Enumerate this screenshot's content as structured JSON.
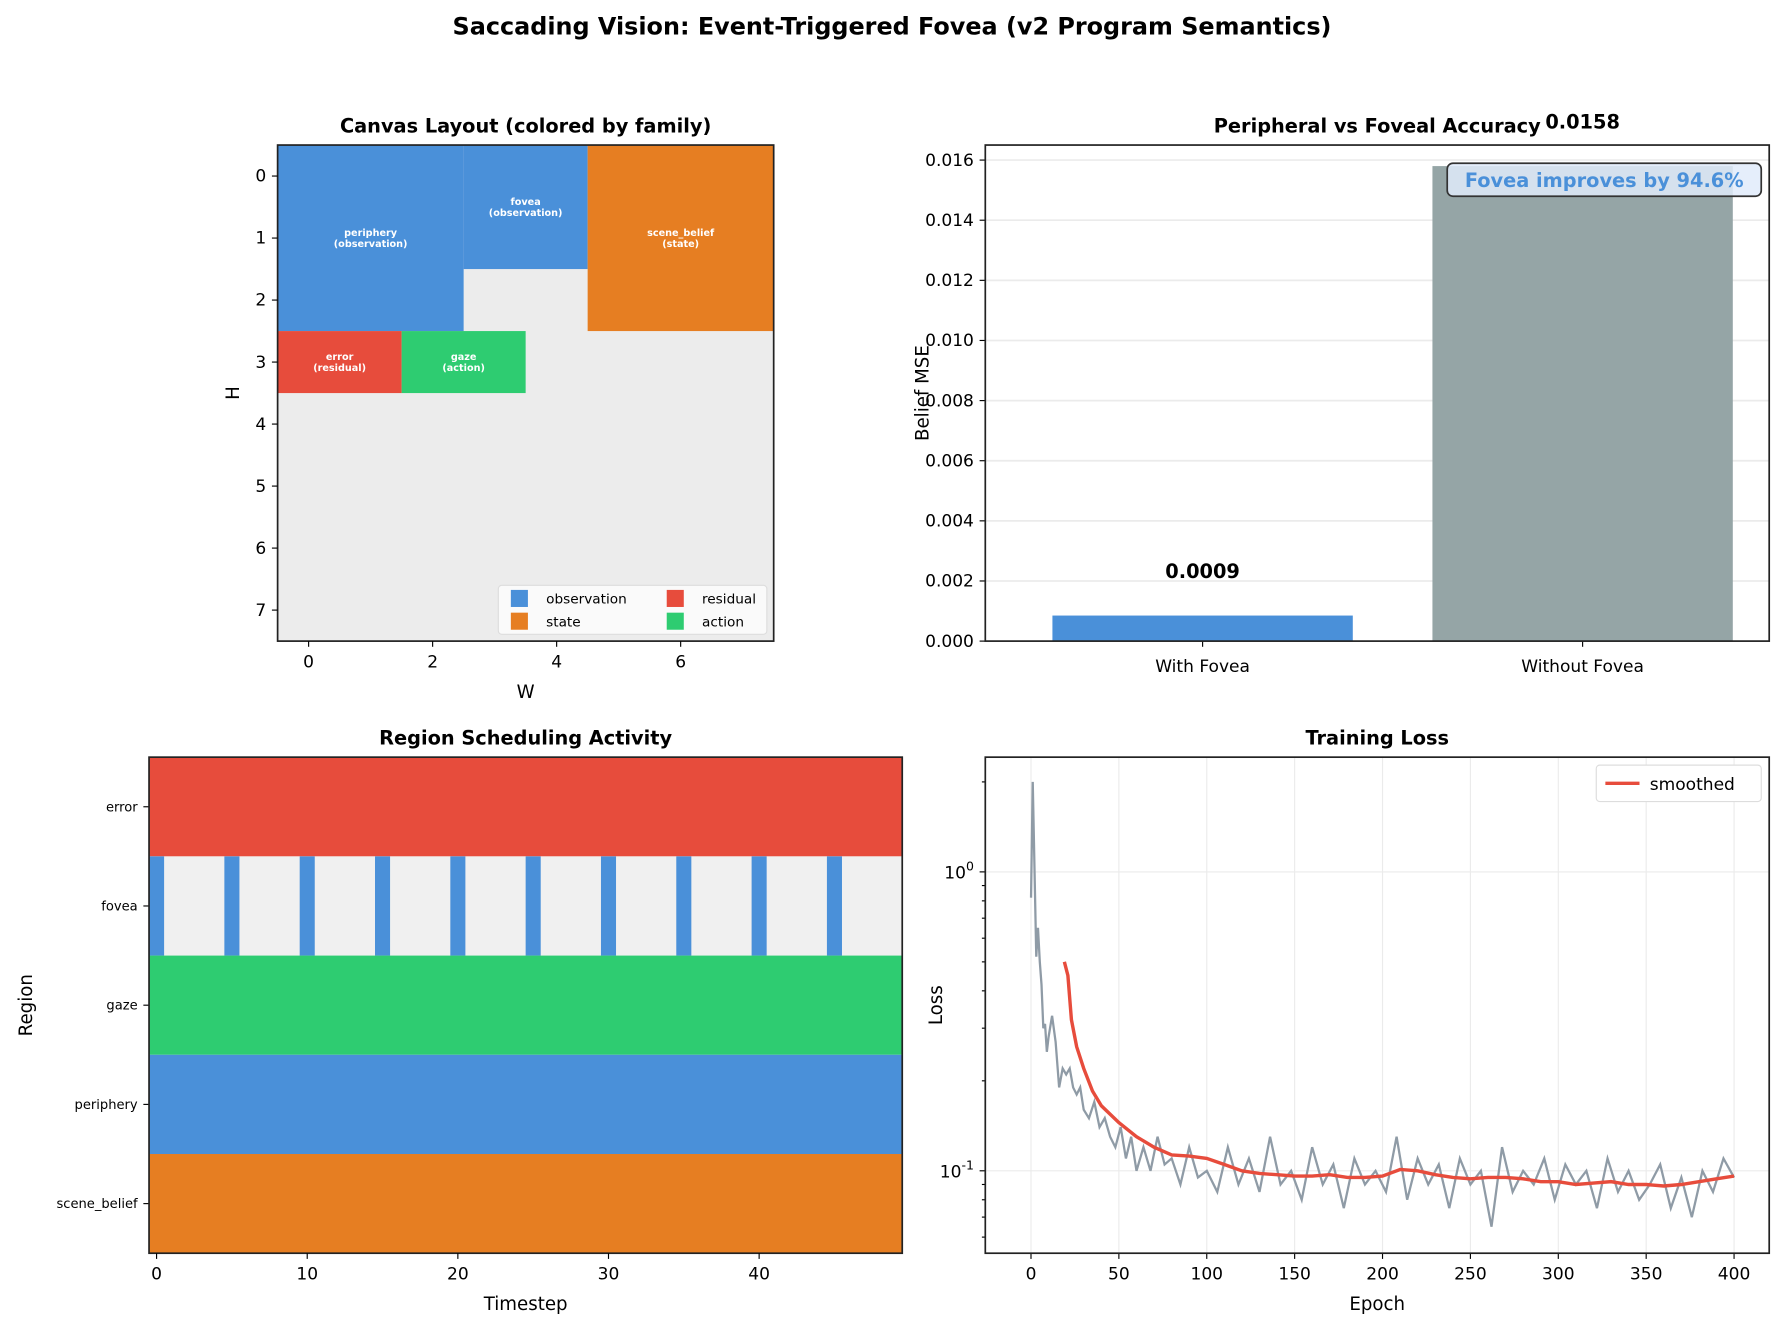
{
  "title": "Saccading Vision: Event-Triggered Fovea (v2 Program Semantics)",
  "colors": {
    "observation": "#4a90d9",
    "state": "#e67e22",
    "residual": "#e74c3c",
    "action": "#2ecc71",
    "empty": "#ececec",
    "inactive": "#f0f0f0",
    "without": "#95a5a6",
    "raw_loss": "#8f9ba6",
    "smoothed": "#e74c3c"
  },
  "chart_data": [
    {
      "type": "heatmap",
      "title": "Canvas Layout (colored by family)",
      "xlabel": "W",
      "ylabel": "H",
      "xlim": [
        -0.5,
        7.5
      ],
      "ylim": [
        7.5,
        -0.5
      ],
      "xticks": [
        "0",
        "2",
        "4",
        "6"
      ],
      "yticks": [
        "0",
        "1",
        "2",
        "3",
        "4",
        "5",
        "6",
        "7"
      ],
      "regions": [
        {
          "name": "periphery",
          "family": "observation",
          "label": "periphery\n(observation)",
          "rows": [
            0,
            2
          ],
          "cols": [
            0,
            2
          ]
        },
        {
          "name": "fovea",
          "family": "observation",
          "label": "fovea\n(observation)",
          "rows": [
            0,
            1
          ],
          "cols": [
            3,
            4
          ]
        },
        {
          "name": "scene_belief",
          "family": "state",
          "label": "scene_belief\n(state)",
          "rows": [
            0,
            2
          ],
          "cols": [
            5,
            7
          ]
        },
        {
          "name": "error",
          "family": "residual",
          "label": "error\n(residual)",
          "rows": [
            3,
            3
          ],
          "cols": [
            0,
            1
          ]
        },
        {
          "name": "gaze",
          "family": "action",
          "label": "gaze\n(action)",
          "rows": [
            3,
            3
          ],
          "cols": [
            2,
            3
          ]
        }
      ],
      "legend": {
        "position": "lower-right",
        "entries": [
          "observation",
          "state",
          "residual",
          "action"
        ]
      }
    },
    {
      "type": "bar",
      "title": "Peripheral vs Foveal Accuracy",
      "ylabel": "Belief MSE",
      "categories": [
        "With Fovea",
        "Without Fovea"
      ],
      "values": [
        0.00085,
        0.0158
      ],
      "data_labels": [
        "0.0009",
        "0.0158"
      ],
      "ylim": [
        0,
        0.0165
      ],
      "yticks": [
        "0.000",
        "0.002",
        "0.004",
        "0.006",
        "0.008",
        "0.010",
        "0.012",
        "0.014",
        "0.016"
      ],
      "grid": "y",
      "annotation": "Fovea improves by 94.6%"
    },
    {
      "type": "heatmap",
      "title": "Region Scheduling Activity",
      "xlabel": "Timestep",
      "ylabel": "Region",
      "xlim": [
        -0.5,
        49.5
      ],
      "xticks": [
        "0",
        "10",
        "20",
        "30",
        "40"
      ],
      "rows": [
        {
          "name": "error",
          "family": "residual",
          "active": "all"
        },
        {
          "name": "fovea",
          "family": "observation",
          "active": [
            0,
            5,
            10,
            15,
            20,
            25,
            30,
            35,
            40,
            45
          ]
        },
        {
          "name": "gaze",
          "family": "action",
          "active": "all"
        },
        {
          "name": "periphery",
          "family": "observation",
          "active": "all"
        },
        {
          "name": "scene_belief",
          "family": "state",
          "active": "all"
        }
      ]
    },
    {
      "type": "line",
      "title": "Training Loss",
      "xlabel": "Epoch",
      "ylabel": "Loss",
      "yscale": "log",
      "xlim": [
        -26,
        420
      ],
      "ylim": [
        0.053,
        2.42
      ],
      "xticks": [
        "0",
        "50",
        "100",
        "150",
        "200",
        "250",
        "300",
        "350",
        "400"
      ],
      "yticks": [
        "10^0",
        "10^-1"
      ],
      "grid": true,
      "legend": {
        "position": "top-right",
        "entries": [
          "smoothed"
        ]
      },
      "series": [
        {
          "x": [
            0,
            1,
            2,
            3,
            4,
            5,
            6,
            7,
            8,
            9,
            10,
            12,
            14,
            16,
            18,
            20,
            22,
            24,
            26,
            28,
            30,
            33,
            36,
            39,
            42,
            45,
            48,
            51,
            54,
            57,
            60,
            64,
            68,
            72,
            76,
            80,
            85,
            90,
            95,
            100,
            106,
            112,
            118,
            124,
            130,
            136,
            142,
            148,
            154,
            160,
            166,
            172,
            178,
            184,
            190,
            196,
            202,
            208,
            214,
            220,
            226,
            232,
            238,
            244,
            250,
            256,
            262,
            268,
            274,
            280,
            286,
            292,
            298,
            304,
            310,
            316,
            322,
            328,
            334,
            340,
            346,
            352,
            358,
            364,
            370,
            376,
            382,
            388,
            394,
            400
          ],
          "y": [
            0.82,
            2.0,
            1.0,
            0.52,
            0.65,
            0.5,
            0.42,
            0.3,
            0.31,
            0.25,
            0.28,
            0.33,
            0.27,
            0.19,
            0.22,
            0.21,
            0.22,
            0.19,
            0.18,
            0.19,
            0.16,
            0.15,
            0.17,
            0.14,
            0.15,
            0.13,
            0.12,
            0.14,
            0.11,
            0.13,
            0.1,
            0.12,
            0.1,
            0.13,
            0.105,
            0.11,
            0.09,
            0.12,
            0.095,
            0.1,
            0.085,
            0.12,
            0.09,
            0.11,
            0.085,
            0.13,
            0.09,
            0.1,
            0.08,
            0.12,
            0.09,
            0.105,
            0.075,
            0.11,
            0.09,
            0.1,
            0.085,
            0.13,
            0.08,
            0.11,
            0.09,
            0.105,
            0.075,
            0.11,
            0.09,
            0.1,
            0.065,
            0.12,
            0.085,
            0.1,
            0.09,
            0.11,
            0.08,
            0.105,
            0.09,
            0.1,
            0.075,
            0.11,
            0.085,
            0.1,
            0.08,
            0.09,
            0.105,
            0.075,
            0.095,
            0.07,
            0.1,
            0.085,
            0.11,
            0.095
          ]
        },
        {
          "name": "smoothed",
          "x": [
            19,
            21,
            23,
            26,
            30,
            35,
            40,
            50,
            60,
            70,
            80,
            90,
            100,
            110,
            120,
            130,
            140,
            150,
            160,
            170,
            180,
            190,
            200,
            210,
            220,
            230,
            240,
            250,
            260,
            270,
            280,
            290,
            300,
            310,
            320,
            330,
            340,
            350,
            360,
            370,
            380,
            390,
            400
          ],
          "y": [
            0.5,
            0.45,
            0.32,
            0.26,
            0.22,
            0.185,
            0.165,
            0.145,
            0.13,
            0.12,
            0.113,
            0.112,
            0.11,
            0.105,
            0.1,
            0.098,
            0.097,
            0.096,
            0.096,
            0.097,
            0.095,
            0.095,
            0.096,
            0.101,
            0.1,
            0.097,
            0.095,
            0.094,
            0.095,
            0.095,
            0.094,
            0.092,
            0.092,
            0.09,
            0.091,
            0.092,
            0.09,
            0.09,
            0.089,
            0.09,
            0.092,
            0.094,
            0.096
          ]
        }
      ]
    }
  ]
}
